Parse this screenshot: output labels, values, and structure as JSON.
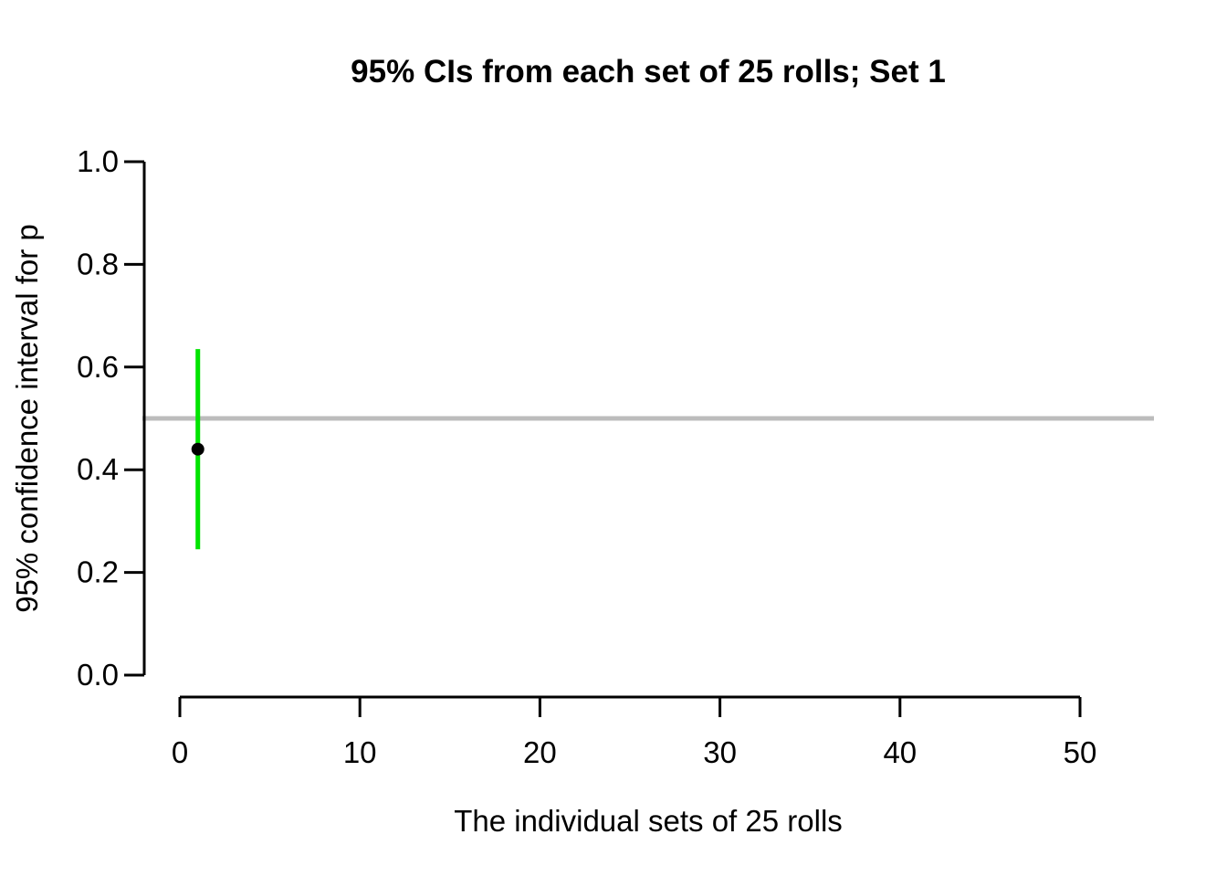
{
  "chart_data": {
    "type": "scatter",
    "subtype": "confidence-interval-plot",
    "title": "95% CIs from each set of 25 rolls; Set 1",
    "xlabel": "The individual sets of 25 rolls",
    "ylabel": "95% confidence interval for p",
    "x_ticks": [
      0,
      10,
      20,
      30,
      40,
      50
    ],
    "y_ticks": [
      0,
      0.2,
      0.4,
      0.6,
      0.8,
      1
    ],
    "y_tick_labels": [
      "0.0",
      "0.2",
      "0.4",
      "0.6",
      "0.8",
      "1.0"
    ],
    "xlim": [
      -2.1,
      54.1
    ],
    "ylim": [
      -0.04,
      1.04
    ],
    "grid": false,
    "legend": null,
    "series": [
      {
        "name": "set-1",
        "points": [
          {
            "x": 1,
            "estimate": 0.44,
            "ci_lower": 0.245,
            "ci_upper": 0.635,
            "covers_reference": true
          }
        ]
      }
    ],
    "reference_line": {
      "y": 0.5
    },
    "colors": {
      "axis": "#000000",
      "point": "#000000",
      "ci_interval": "#00e400",
      "reference_line": "#bcbcbc",
      "background": "#ffffff"
    }
  }
}
